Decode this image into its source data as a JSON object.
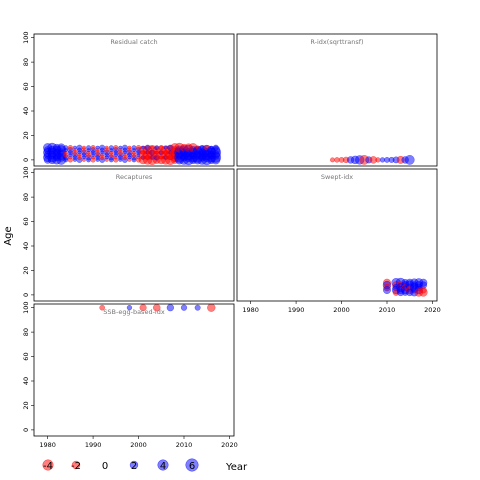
{
  "figure": {
    "y_axis_label": "Age",
    "x_axis_label": "Year"
  },
  "colors": {
    "negative": "#ff0000",
    "positive": "#0000ff",
    "panel_title": "#777777"
  },
  "legend": {
    "items": [
      {
        "value": -4,
        "label": "-4",
        "sign": "negative"
      },
      {
        "value": -2,
        "label": "-2",
        "sign": "negative"
      },
      {
        "value": 0,
        "label": "0",
        "sign": "zero"
      },
      {
        "value": 2,
        "label": "2",
        "sign": "positive"
      },
      {
        "value": 4,
        "label": "4",
        "sign": "positive"
      },
      {
        "value": 6,
        "label": "6",
        "sign": "positive"
      }
    ]
  },
  "chart_data": [
    {
      "type": "scatter",
      "title": "Residual catch",
      "xlim": [
        1977,
        2021
      ],
      "ylim": [
        -5,
        103
      ],
      "xticks": [],
      "yticks": [
        0,
        20,
        40,
        60,
        80,
        100
      ],
      "x_range": [
        1980,
        2017
      ],
      "y_levels": [
        0,
        2,
        4,
        6,
        8,
        10
      ],
      "bands": [
        {
          "from": 2001,
          "to": 2008,
          "rows": [
            0,
            4,
            8
          ],
          "value": -5.5
        },
        {
          "from": 2008,
          "to": 2012,
          "rows": [
            2,
            6,
            10
          ],
          "value": -5
        },
        {
          "from": 2013,
          "to": 2015,
          "rows": [
            4,
            8
          ],
          "value": -4.5
        },
        {
          "from": 2009,
          "to": 2017,
          "rows": [
            0,
            2,
            4,
            6,
            8
          ],
          "value": 6
        },
        {
          "from": 1980,
          "to": 1983,
          "rows": [
            0,
            2,
            4,
            6,
            8,
            10
          ],
          "value": 5
        }
      ]
    },
    {
      "type": "scatter",
      "title": "R-idx(sqrttransf)",
      "xlim": [
        1977,
        2021
      ],
      "ylim": [
        -5,
        103
      ],
      "xticks": [],
      "yticks": [],
      "points": [
        [
          1998,
          0,
          -0.8
        ],
        [
          1999,
          0,
          -1.1
        ],
        [
          2000,
          0,
          -1.3
        ],
        [
          2001,
          0,
          -1.7
        ],
        [
          2002,
          0,
          2.5
        ],
        [
          2003,
          0,
          3.5
        ],
        [
          2004,
          0,
          4.5
        ],
        [
          2005,
          0,
          -5.0
        ],
        [
          2006,
          0,
          2.2
        ],
        [
          2007,
          0,
          -2.6
        ],
        [
          2008,
          0,
          -1.0
        ],
        [
          2009,
          0,
          1.0
        ],
        [
          2010,
          0,
          1.3
        ],
        [
          2011,
          0,
          1.4
        ],
        [
          2012,
          0,
          2.0
        ],
        [
          2013,
          0,
          -3.0
        ],
        [
          2014,
          0,
          2.5
        ],
        [
          2015,
          0,
          5.0
        ]
      ]
    },
    {
      "type": "scatter",
      "title": "Recaptures",
      "xlim": [
        1977,
        2021
      ],
      "ylim": [
        -5,
        103
      ],
      "xticks": [],
      "yticks": [
        0,
        20,
        40,
        60,
        80,
        100
      ],
      "points": []
    },
    {
      "type": "scatter",
      "title": "Swept-idx",
      "xlim": [
        1977,
        2021
      ],
      "ylim": [
        -5,
        103
      ],
      "xticks": [
        1980,
        1990,
        2000,
        2010,
        2020
      ],
      "yticks": [],
      "points": [
        [
          2010,
          10,
          -3.0
        ],
        [
          2010,
          8,
          3.5
        ],
        [
          2010,
          6,
          -2.5
        ],
        [
          2010,
          4,
          3.0
        ],
        [
          2012,
          10,
          4.5
        ],
        [
          2012,
          8,
          -3.0
        ],
        [
          2012,
          6,
          2.5
        ],
        [
          2012,
          4,
          3.5
        ],
        [
          2012,
          2,
          -2.0
        ],
        [
          2013,
          10,
          5.0
        ],
        [
          2013,
          8,
          -2.5
        ],
        [
          2013,
          6,
          4.0
        ],
        [
          2013,
          4,
          3.0
        ],
        [
          2013,
          2,
          2.5
        ],
        [
          2014,
          10,
          2.5
        ],
        [
          2014,
          8,
          3.0
        ],
        [
          2014,
          6,
          -2.0
        ],
        [
          2014,
          4,
          3.5
        ],
        [
          2014,
          2,
          2.0
        ],
        [
          2015,
          10,
          3.0
        ],
        [
          2015,
          8,
          4.5
        ],
        [
          2015,
          6,
          3.0
        ],
        [
          2015,
          4,
          -3.0
        ],
        [
          2015,
          2,
          2.5
        ],
        [
          2016,
          10,
          3.5
        ],
        [
          2016,
          8,
          2.5
        ],
        [
          2016,
          6,
          4.0
        ],
        [
          2016,
          4,
          2.0
        ],
        [
          2016,
          2,
          3.0
        ],
        [
          2017,
          10,
          4.0
        ],
        [
          2017,
          8,
          3.0
        ],
        [
          2017,
          6,
          2.5
        ],
        [
          2017,
          4,
          3.5
        ],
        [
          2017,
          2,
          -3.5
        ],
        [
          2018,
          10,
          3.0
        ],
        [
          2018,
          8,
          2.5
        ],
        [
          2018,
          4,
          -2.0
        ],
        [
          2018,
          2,
          -3.5
        ]
      ]
    },
    {
      "type": "scatter",
      "title": "SSB-egg-based-idx",
      "xlim": [
        1977,
        2021
      ],
      "ylim": [
        -5,
        103
      ],
      "xticks": [
        1980,
        1990,
        2000,
        2010,
        2020
      ],
      "yticks": [
        0,
        20,
        40,
        60,
        80,
        100
      ],
      "points": [
        [
          1992,
          100,
          -1.2
        ],
        [
          1998,
          100,
          1.0
        ],
        [
          2001,
          100,
          -2.2
        ],
        [
          2004,
          100,
          -2.6
        ],
        [
          2007,
          100,
          2.4
        ],
        [
          2010,
          100,
          1.6
        ],
        [
          2013,
          100,
          1.4
        ],
        [
          2016,
          100,
          -3.4
        ]
      ]
    }
  ]
}
